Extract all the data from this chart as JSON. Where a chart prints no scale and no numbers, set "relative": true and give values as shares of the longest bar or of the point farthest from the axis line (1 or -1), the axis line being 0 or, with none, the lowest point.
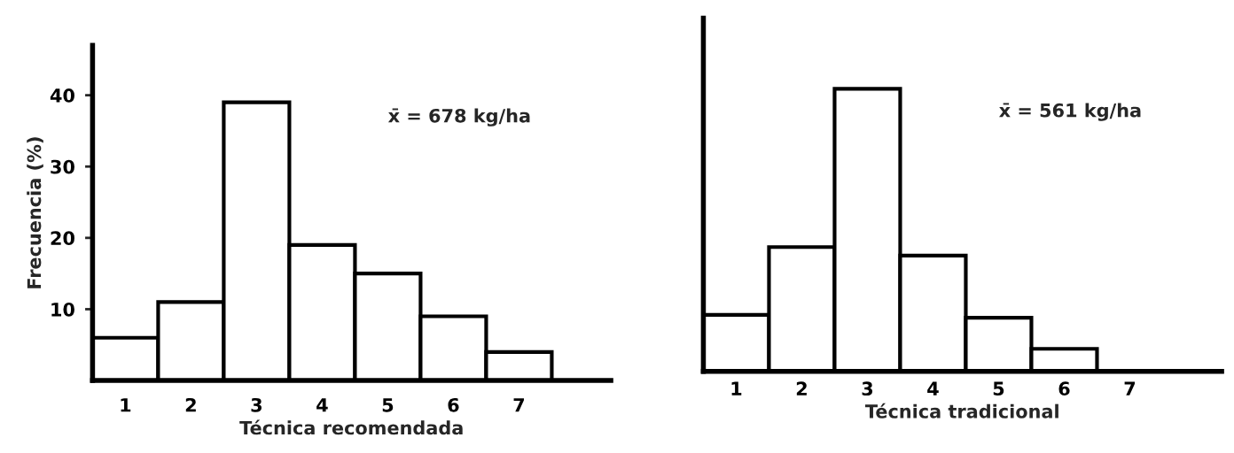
{
  "chart_data": [
    {
      "type": "bar",
      "xlabel": "Técnica recomendada",
      "ylabel": "Frecuencia (%)",
      "categories": [
        "1",
        "2",
        "3",
        "4",
        "5",
        "6",
        "7"
      ],
      "series": [
        {
          "color": "#ffffff",
          "values": [
            6,
            11,
            39,
            19,
            15,
            9,
            4
          ]
        }
      ],
      "ylim": [
        0,
        47
      ],
      "yticks": [
        10,
        20,
        30,
        40
      ],
      "grid": false,
      "legend": false,
      "annotations": [
        "x̄ = 678 kg/ha"
      ]
    },
    {
      "type": "bar",
      "xlabel": "Técnica tradicional",
      "categories": [
        "1",
        "2",
        "3",
        "4",
        "5",
        "6",
        "7"
      ],
      "relative": true,
      "tick_labels": "x",
      "series": [
        {
          "color": "#ffffff",
          "values": [
            0.2,
            0.44,
            1,
            0.41,
            0.19,
            0.08,
            null
          ]
        }
      ],
      "grid": false,
      "legend": false,
      "annotations": [
        "x̄ = 561 kg/ha"
      ]
    }
  ]
}
